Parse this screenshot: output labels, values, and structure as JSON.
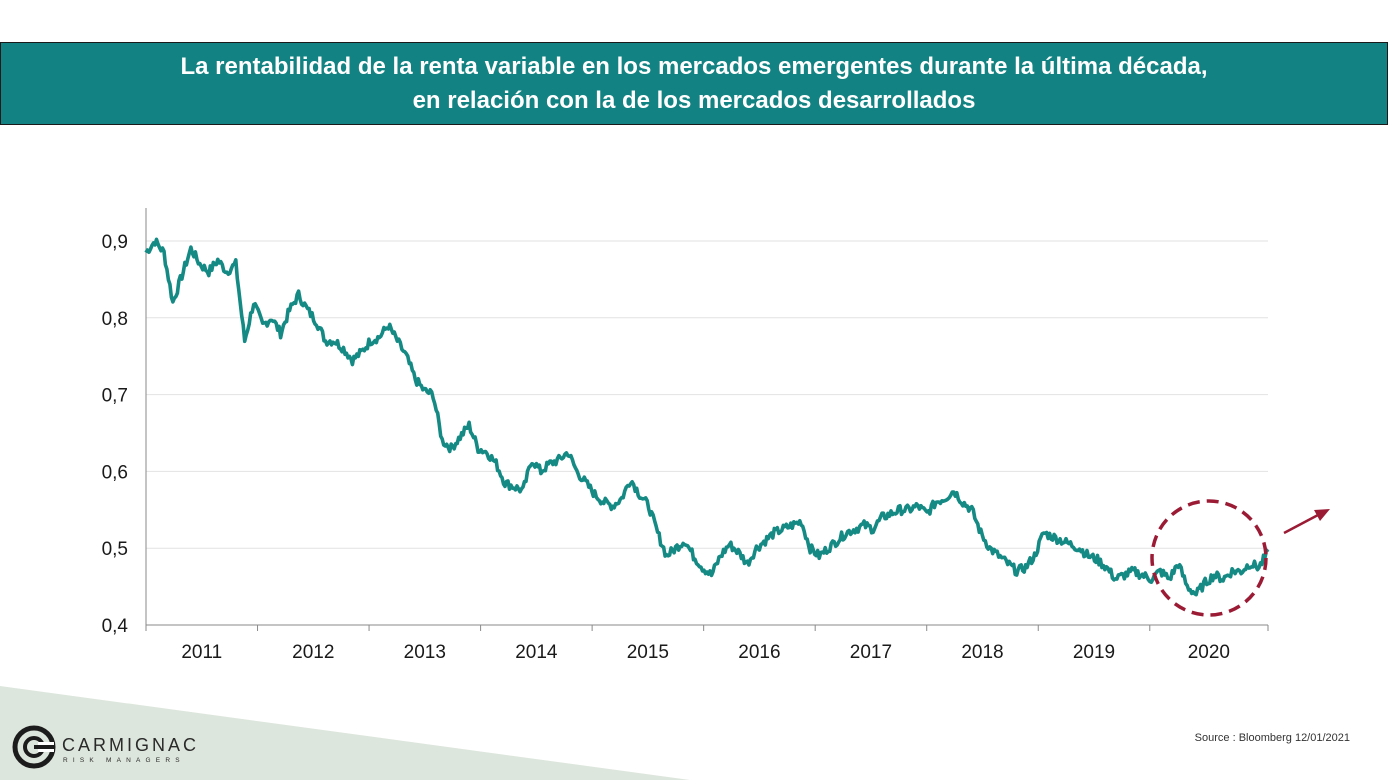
{
  "header": {
    "title_line1": "La rentabilidad de la renta variable en los mercados emergentes durante la última década,",
    "title_line2": "en relación con la de los mercados desarrollados"
  },
  "chart_data": {
    "type": "line",
    "title": "La rentabilidad de la renta variable en los mercados emergentes durante la última década, en relación con la de los mercados desarrollados",
    "xlabel": "",
    "ylabel": "",
    "ylim": [
      0.4,
      0.95
    ],
    "xlim": [
      "2010-07",
      "2020-12"
    ],
    "yticks": [
      "0,9",
      "0,8",
      "0,7",
      "0,6",
      "0,5",
      "0,4"
    ],
    "ytick_values": [
      0.9,
      0.8,
      0.7,
      0.6,
      0.5,
      0.4
    ],
    "xticks": [
      "2011",
      "2012",
      "2013",
      "2014",
      "2015",
      "2016",
      "2017",
      "2018",
      "2019",
      "2020"
    ],
    "grid": "horizontal",
    "color": "#158a84",
    "highlight": {
      "shape": "dashed-circle",
      "color": "#9b1b35",
      "period": "2020"
    },
    "arrow": {
      "direction": "up-right",
      "color": "#9b1b35"
    },
    "series": [
      {
        "x": [
          "2010-07",
          "2010-08",
          "2010-09",
          "2010-10",
          "2010-11",
          "2010-12",
          "2011-01",
          "2011-02",
          "2011-03",
          "2011-04",
          "2011-05",
          "2011-06",
          "2011-07",
          "2011-08",
          "2011-09",
          "2011-10",
          "2011-11",
          "2011-12",
          "2012-01",
          "2012-02",
          "2012-03",
          "2012-04",
          "2012-05",
          "2012-06",
          "2012-07",
          "2012-08",
          "2012-09",
          "2012-10",
          "2012-11",
          "2012-12",
          "2013-01",
          "2013-02",
          "2013-03",
          "2013-04",
          "2013-05",
          "2013-06",
          "2013-07",
          "2013-08",
          "2013-09",
          "2013-10",
          "2013-11",
          "2013-12",
          "2014-01",
          "2014-02",
          "2014-03",
          "2014-04",
          "2014-05",
          "2014-06",
          "2014-07",
          "2014-08",
          "2014-09",
          "2014-10",
          "2014-11",
          "2014-12",
          "2015-01",
          "2015-02",
          "2015-03",
          "2015-04",
          "2015-05",
          "2015-06",
          "2015-07",
          "2015-08",
          "2015-09",
          "2015-10",
          "2015-11",
          "2015-12",
          "2016-01",
          "2016-02",
          "2016-03",
          "2016-04",
          "2016-05",
          "2016-06",
          "2016-07",
          "2016-08",
          "2016-09",
          "2016-10",
          "2016-11",
          "2016-12",
          "2017-01",
          "2017-02",
          "2017-03",
          "2017-04",
          "2017-05",
          "2017-06",
          "2017-07",
          "2017-08",
          "2017-09",
          "2017-10",
          "2017-11",
          "2017-12",
          "2018-01",
          "2018-02",
          "2018-03",
          "2018-04",
          "2018-05",
          "2018-06",
          "2018-07",
          "2018-08",
          "2018-09",
          "2018-10",
          "2018-11",
          "2018-12",
          "2019-01",
          "2019-02",
          "2019-03",
          "2019-04",
          "2019-05",
          "2019-06",
          "2019-07",
          "2019-08",
          "2019-09",
          "2019-10",
          "2019-11",
          "2019-12",
          "2020-01",
          "2020-02",
          "2020-03",
          "2020-04",
          "2020-05",
          "2020-06",
          "2020-07",
          "2020-08",
          "2020-09",
          "2020-10",
          "2020-11",
          "2020-12"
        ],
        "values": [
          0.885,
          0.9,
          0.885,
          0.82,
          0.855,
          0.89,
          0.87,
          0.86,
          0.875,
          0.86,
          0.87,
          0.77,
          0.82,
          0.79,
          0.8,
          0.78,
          0.81,
          0.83,
          0.81,
          0.795,
          0.77,
          0.77,
          0.76,
          0.745,
          0.755,
          0.77,
          0.775,
          0.79,
          0.77,
          0.75,
          0.72,
          0.705,
          0.7,
          0.64,
          0.63,
          0.645,
          0.66,
          0.63,
          0.625,
          0.61,
          0.585,
          0.58,
          0.575,
          0.615,
          0.6,
          0.61,
          0.615,
          0.625,
          0.6,
          0.585,
          0.57,
          0.56,
          0.555,
          0.565,
          0.59,
          0.57,
          0.555,
          0.52,
          0.49,
          0.5,
          0.51,
          0.49,
          0.475,
          0.465,
          0.49,
          0.505,
          0.495,
          0.48,
          0.5,
          0.51,
          0.52,
          0.525,
          0.53,
          0.535,
          0.5,
          0.49,
          0.5,
          0.51,
          0.52,
          0.525,
          0.53,
          0.525,
          0.54,
          0.545,
          0.55,
          0.55,
          0.555,
          0.545,
          0.56,
          0.565,
          0.575,
          0.56,
          0.55,
          0.52,
          0.5,
          0.49,
          0.48,
          0.47,
          0.475,
          0.49,
          0.52,
          0.515,
          0.51,
          0.505,
          0.5,
          0.49,
          0.485,
          0.475,
          0.46,
          0.465,
          0.47,
          0.465,
          0.46,
          0.47,
          0.46,
          0.48,
          0.45,
          0.44,
          0.455,
          0.465,
          0.46,
          0.47,
          0.47,
          0.48,
          0.475,
          0.495
        ]
      }
    ]
  },
  "logo": {
    "name": "CARMIGNAC",
    "tagline": "RISK MANAGERS"
  },
  "footer": {
    "source": "Source  : Bloomberg 12/01/2021"
  }
}
